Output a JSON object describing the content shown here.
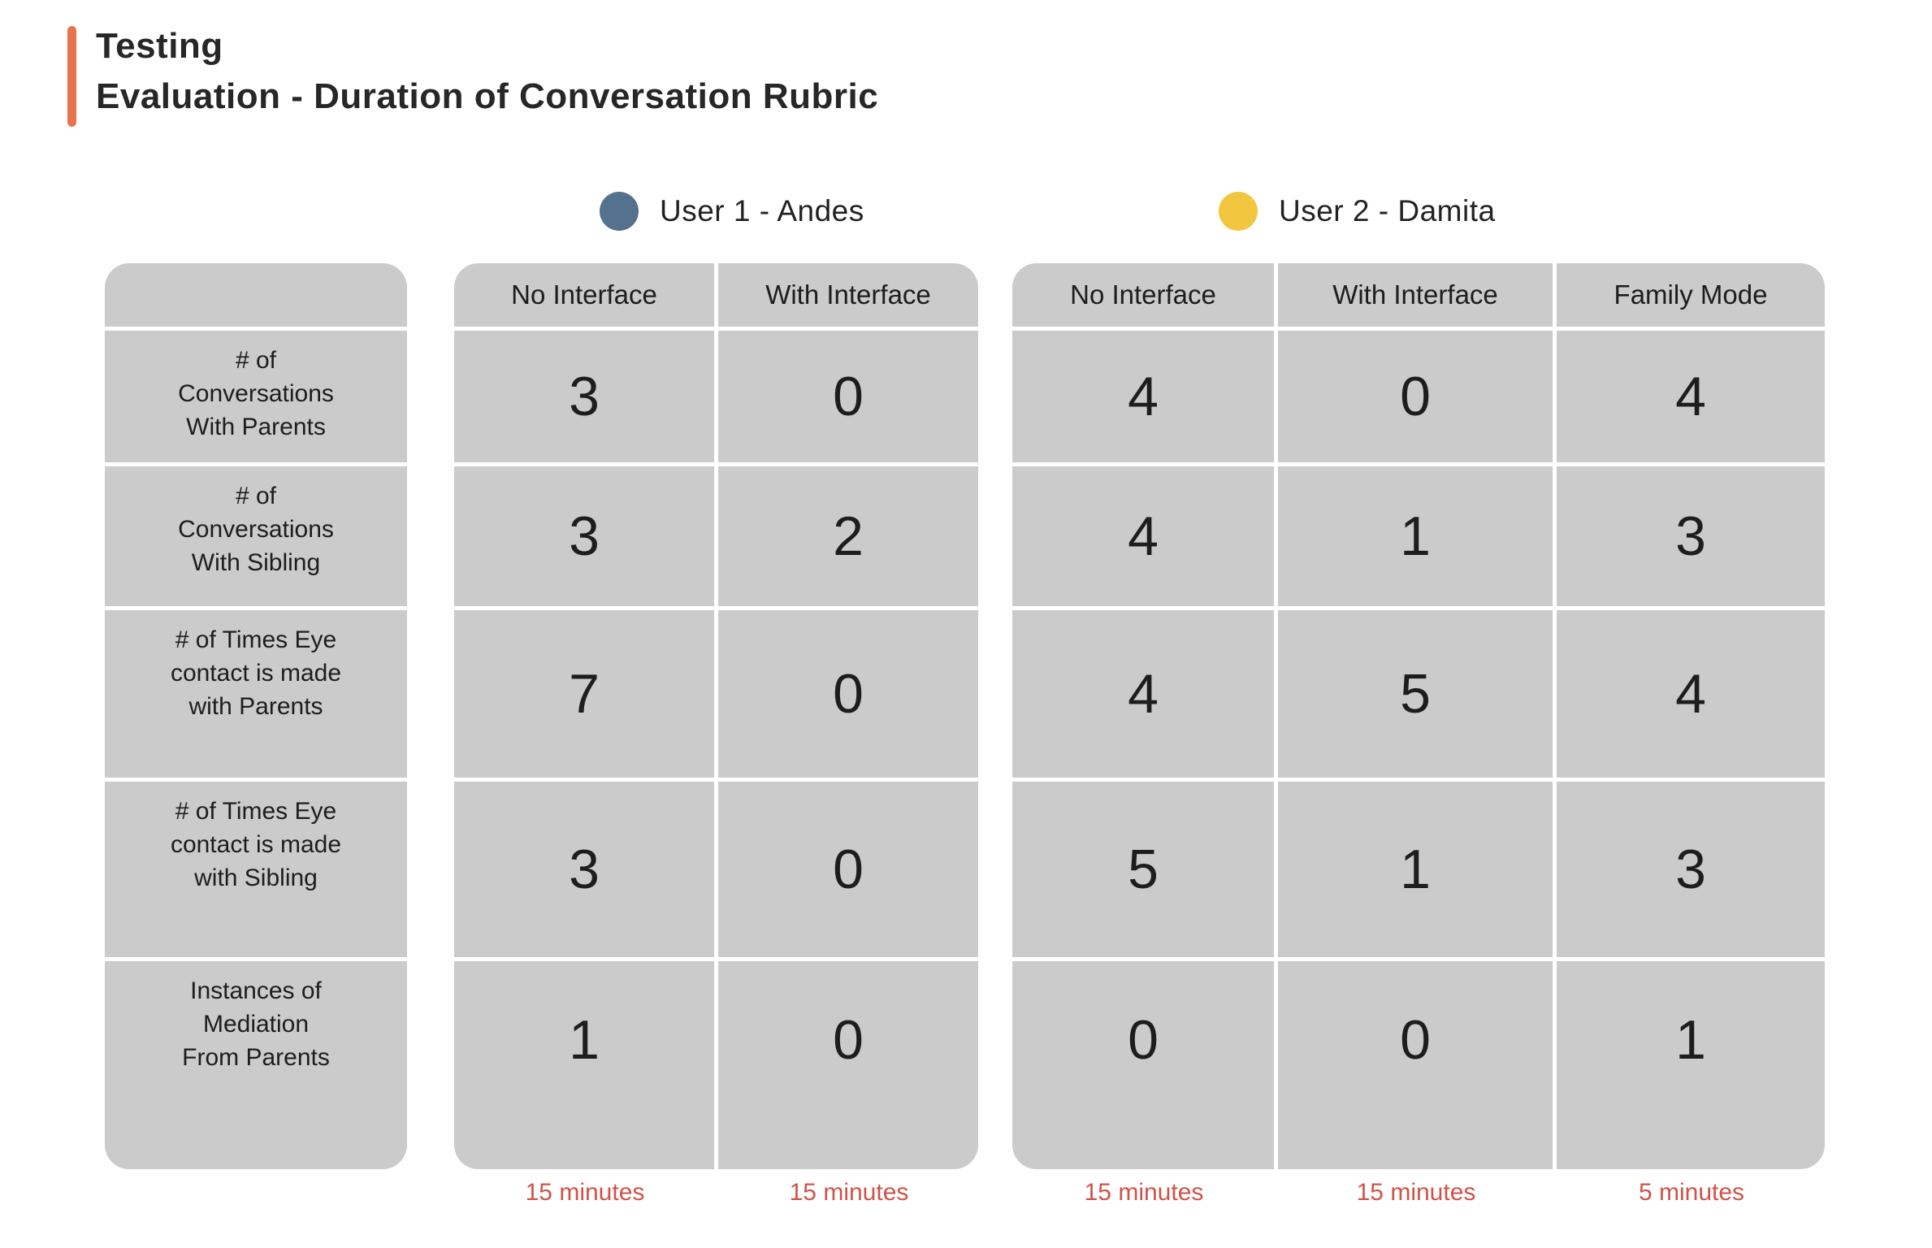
{
  "title": {
    "line1": "Testing",
    "line2": "Evaluation - Duration of Conversation Rubric"
  },
  "legend": {
    "user1": {
      "label": "User 1 - Andes",
      "color": "#54718E"
    },
    "user2": {
      "label": "User 2 - Damita",
      "color": "#F3C63F"
    }
  },
  "colors": {
    "accent_bar": "#E8744F",
    "cell_background": "#CBCBCB",
    "duration_text": "#CF5349",
    "body_text": "#1d1d1d"
  },
  "table": {
    "row_labels": [
      "# of\nConversations\nWith Parents",
      "# of\nConversations\nWith Sibling",
      "# of Times Eye\ncontact is made\nwith Parents",
      "# of Times Eye\ncontact is made\nwith Sibling",
      "Instances of\nMediation\nFrom Parents"
    ],
    "group1": {
      "user": "User 1 - Andes",
      "columns": [
        "No Interface",
        "With Interface"
      ],
      "values": [
        [
          "3",
          "0"
        ],
        [
          "3",
          "2"
        ],
        [
          "7",
          "0"
        ],
        [
          "3",
          "0"
        ],
        [
          "1",
          "0"
        ]
      ],
      "durations": [
        "15 minutes",
        "15 minutes"
      ]
    },
    "group2": {
      "user": "User 2 - Damita",
      "columns": [
        "No Interface",
        "With Interface",
        "Family Mode"
      ],
      "values": [
        [
          "4",
          "0",
          "4"
        ],
        [
          "4",
          "1",
          "3"
        ],
        [
          "4",
          "5",
          "4"
        ],
        [
          "5",
          "1",
          "3"
        ],
        [
          "0",
          "0",
          "1"
        ]
      ],
      "durations": [
        "15 minutes",
        "15 minutes",
        "5 minutes"
      ]
    }
  },
  "chart_data": {
    "type": "table",
    "title": "Evaluation - Duration of Conversation Rubric",
    "row_labels": [
      "# of Conversations With Parents",
      "# of Conversations With Sibling",
      "# of Times Eye contact is made with Parents",
      "# of Times Eye contact is made with Sibling",
      "Instances of Mediation From Parents"
    ],
    "series": [
      {
        "name": "User 1 - Andes / No Interface",
        "duration": "15 minutes",
        "values": [
          3,
          3,
          7,
          3,
          1
        ]
      },
      {
        "name": "User 1 - Andes / With Interface",
        "duration": "15 minutes",
        "values": [
          0,
          2,
          0,
          0,
          0
        ]
      },
      {
        "name": "User 2 - Damita / No Interface",
        "duration": "15 minutes",
        "values": [
          4,
          4,
          4,
          5,
          0
        ]
      },
      {
        "name": "User 2 - Damita / With Interface",
        "duration": "15 minutes",
        "values": [
          0,
          1,
          5,
          1,
          0
        ]
      },
      {
        "name": "User 2 - Damita / Family Mode",
        "duration": "5 minutes",
        "values": [
          4,
          3,
          4,
          3,
          1
        ]
      }
    ]
  }
}
